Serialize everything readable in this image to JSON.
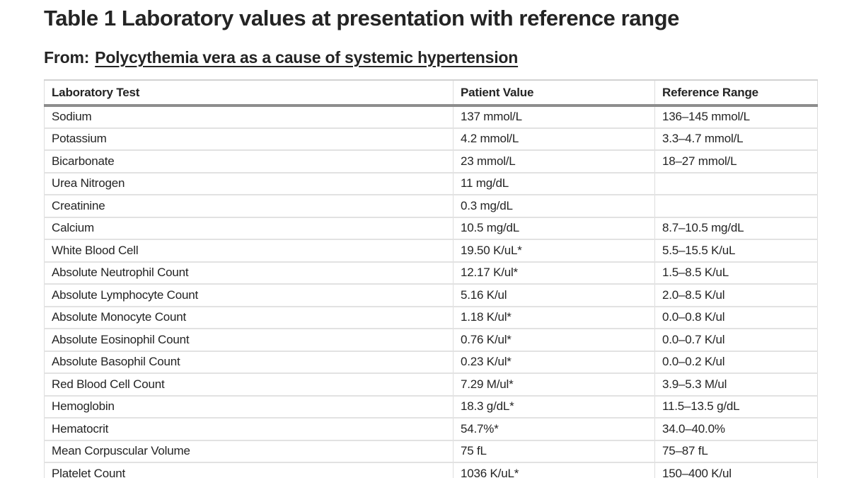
{
  "page": {
    "title": "Table 1 Laboratory values at presentation with reference range",
    "from_label": "From:",
    "article_link": "Polycythemia vera as a cause of systemic hypertension"
  },
  "table": {
    "columns": [
      "Laboratory Test",
      "Patient Value",
      "Reference Range"
    ],
    "rows": [
      [
        "Sodium",
        "137 mmol/L",
        "136–145 mmol/L"
      ],
      [
        "Potassium",
        "4.2 mmol/L",
        "3.3–4.7 mmol/L"
      ],
      [
        "Bicarbonate",
        "23 mmol/L",
        "18–27 mmol/L"
      ],
      [
        "Urea Nitrogen",
        "11 mg/dL",
        ""
      ],
      [
        "Creatinine",
        "0.3 mg/dL",
        ""
      ],
      [
        "Calcium",
        "10.5 mg/dL",
        "8.7–10.5 mg/dL"
      ],
      [
        "White Blood Cell",
        "19.50 K/uL*",
        "5.5–15.5 K/uL"
      ],
      [
        "Absolute Neutrophil Count",
        "12.17 K/ul*",
        "1.5–8.5 K/uL"
      ],
      [
        "Absolute Lymphocyte Count",
        "5.16 K/ul",
        "2.0–8.5 K/ul"
      ],
      [
        "Absolute Monocyte Count",
        "1.18 K/ul*",
        "0.0–0.8 K/ul"
      ],
      [
        "Absolute Eosinophil Count",
        "0.76 K/ul*",
        "0.0–0.7 K/ul"
      ],
      [
        "Absolute Basophil Count",
        "0.23 K/ul*",
        "0.0–0.2 K/ul"
      ],
      [
        "Red Blood Cell Count",
        "7.29 M/ul*",
        "3.9–5.3 M/ul"
      ],
      [
        "Hemoglobin",
        "18.3 g/dL*",
        "11.5–13.5 g/dL"
      ],
      [
        "Hematocrit",
        "54.7%*",
        "34.0–40.0%"
      ],
      [
        "Mean Corpuscular Volume",
        "75 fL",
        "75–87 fL"
      ],
      [
        "Platelet Count",
        "1036 K/uL*",
        "150–400 K/ul"
      ]
    ]
  }
}
